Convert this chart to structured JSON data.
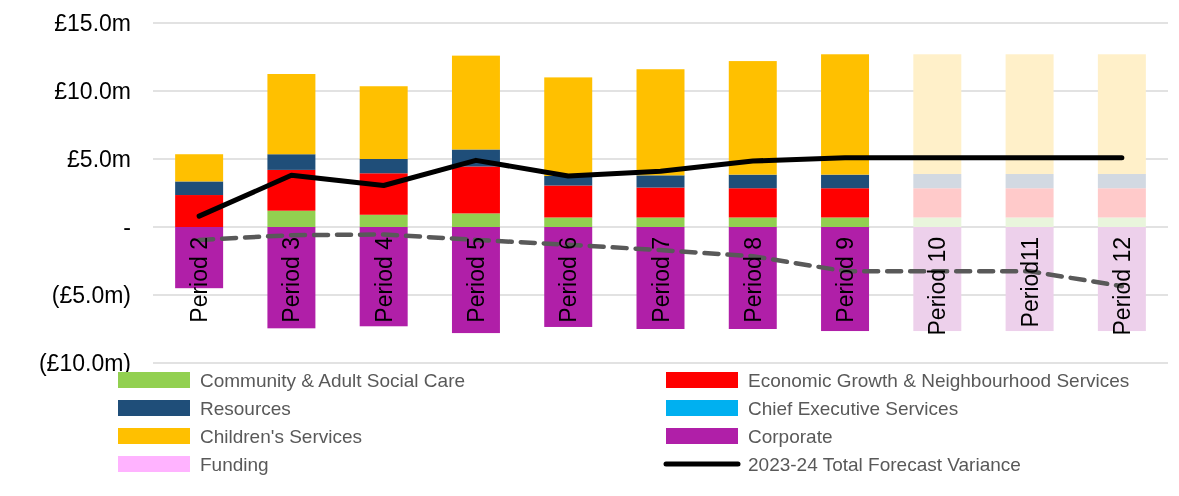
{
  "chart_data": {
    "type": "bar",
    "stacked": true,
    "categories": [
      "Period 2",
      "Period 3",
      "Period 4",
      "Period 5",
      "Period 6",
      "Period 7",
      "Period 8",
      "Period 9",
      "Period 10",
      "Period11",
      "Period 12"
    ],
    "ylim": [
      -10,
      15
    ],
    "yticks": [
      {
        "value": -10,
        "label": "(£10.0m)"
      },
      {
        "value": -5,
        "label": "(£5.0m)"
      },
      {
        "value": 0,
        "label": "-"
      },
      {
        "value": 5,
        "label": "£5.0m"
      },
      {
        "value": 10,
        "label": "£10.0m"
      },
      {
        "value": 15,
        "label": "£15.0m"
      }
    ],
    "grid": "y",
    "legend": "bottom",
    "series": [
      {
        "name": "Community & Adult Social Care",
        "color": "#92d050",
        "colors": [
          "#92d050",
          "#92d050",
          "#92d050",
          "#92d050",
          "#92d050",
          "#92d050",
          "#92d050",
          "#92d050",
          "#e9f5dc",
          "#e9f5dc",
          "#e9f5dc"
        ],
        "values": [
          0,
          1.2,
          0.9,
          1.0,
          0.7,
          0.7,
          0.7,
          0.7,
          0.7,
          0.7,
          0.7
        ]
      },
      {
        "name": "Economic Growth & Neighbourhood Services",
        "color": "#ff0000",
        "colors": [
          "#ff0000",
          "#ff0000",
          "#ff0000",
          "#ff0000",
          "#ff0000",
          "#ff0000",
          "#ff0000",
          "#ff0000",
          "#ffcaca",
          "#ffcaca",
          "#ffcaca"
        ],
        "values": [
          2.35,
          3.0,
          3.05,
          3.45,
          2.35,
          2.2,
          2.15,
          2.15,
          2.15,
          2.15,
          2.15
        ]
      },
      {
        "name": "Resources",
        "color": "#1f4e79",
        "colors": [
          "#1f4e79",
          "#1f4e79",
          "#1f4e79",
          "#1f4e79",
          "#1f4e79",
          "#1f4e79",
          "#1f4e79",
          "#1f4e79",
          "#d2d9e2",
          "#d2d9e2",
          "#d2d9e2"
        ],
        "values": [
          1.0,
          1.15,
          1.05,
          1.25,
          0.7,
          0.9,
          1.0,
          1.0,
          1.05,
          1.05,
          1.05
        ]
      },
      {
        "name": "Chief Executive Services",
        "color": "#00b0f0",
        "values": [
          0,
          0,
          0,
          0,
          0,
          0,
          0,
          0,
          0,
          0,
          0
        ]
      },
      {
        "name": "Children's Services",
        "color": "#ffc000",
        "colors": [
          "#ffc000",
          "#ffc000",
          "#ffc000",
          "#ffc000",
          "#ffc000",
          "#ffc000",
          "#ffc000",
          "#ffc000",
          "#fff0c9",
          "#fff0c9",
          "#fff0c9"
        ],
        "values": [
          2.0,
          5.9,
          5.35,
          6.9,
          7.25,
          7.8,
          8.35,
          8.85,
          8.8,
          8.8,
          8.8
        ]
      },
      {
        "name": "Corporate",
        "color": "#b01fa8",
        "colors": [
          "#b01fa8",
          "#b01fa8",
          "#b01fa8",
          "#b01fa8",
          "#b01fa8",
          "#b01fa8",
          "#b01fa8",
          "#b01fa8",
          "#edd0eb",
          "#edd0eb",
          "#edd0eb"
        ],
        "values": [
          -4.5,
          -7.45,
          -7.3,
          -7.8,
          -7.35,
          -7.5,
          -7.5,
          -7.65,
          -7.65,
          -7.65,
          -7.65
        ]
      },
      {
        "name": "Funding",
        "color": "#ffb3ff",
        "values": [
          0,
          0,
          0,
          0,
          0,
          0,
          0,
          0,
          0,
          0,
          0
        ]
      },
      {
        "name": "2023-24 Total Forecast Variance",
        "type": "line",
        "color": "#000000",
        "line_style": "solid",
        "values": [
          0.8,
          3.8,
          3.05,
          4.9,
          3.75,
          4.1,
          4.85,
          5.1,
          5.1,
          5.1,
          5.1
        ]
      },
      {
        "type": "line",
        "color": "#595959",
        "line_style": "dashed",
        "values": [
          -0.95,
          -0.6,
          -0.55,
          -0.95,
          -1.3,
          -1.7,
          -2.15,
          -3.25,
          -3.25,
          -3.25,
          -4.35
        ]
      }
    ]
  }
}
